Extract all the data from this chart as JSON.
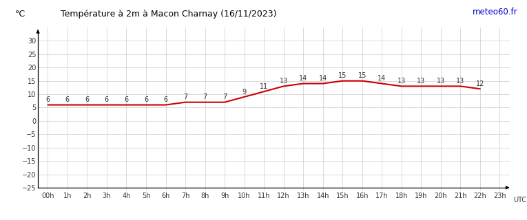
{
  "title": "Température à 2m à Macon Charnay (16/11/2023)",
  "ylabel": "°C",
  "xlabel_right": "UTC",
  "hours": [
    0,
    1,
    2,
    3,
    4,
    5,
    6,
    7,
    8,
    9,
    10,
    11,
    12,
    13,
    14,
    15,
    16,
    17,
    18,
    19,
    20,
    21,
    22
  ],
  "all_hours": [
    0,
    1,
    2,
    3,
    4,
    5,
    6,
    7,
    8,
    9,
    10,
    11,
    12,
    13,
    14,
    15,
    16,
    17,
    18,
    19,
    20,
    21,
    22,
    23
  ],
  "hour_labels": [
    "00h",
    "1h",
    "2h",
    "3h",
    "4h",
    "5h",
    "6h",
    "7h",
    "8h",
    "9h",
    "10h",
    "11h",
    "12h",
    "13h",
    "14h",
    "15h",
    "16h",
    "17h",
    "18h",
    "19h",
    "20h",
    "21h",
    "22h",
    "23h"
  ],
  "temperatures": [
    6,
    6,
    6,
    6,
    6,
    6,
    6,
    7,
    7,
    7,
    9,
    11,
    13,
    14,
    14,
    15,
    15,
    14,
    13,
    13,
    13,
    13,
    12
  ],
  "ylim_min": -26,
  "ylim_max": 35,
  "yticks": [
    -25,
    -20,
    -15,
    -10,
    -5,
    0,
    5,
    10,
    15,
    20,
    25,
    30
  ],
  "line_color": "#cc0000",
  "line_width": 1.5,
  "grid_color": "#cccccc",
  "bg_color": "#ffffff",
  "title_color": "#000000",
  "label_color": "#333333",
  "meteo_text": "meteo60.fr",
  "meteo_color": "#0000cc",
  "title_fontsize": 9,
  "tick_fontsize": 7,
  "label_fontsize": 7
}
